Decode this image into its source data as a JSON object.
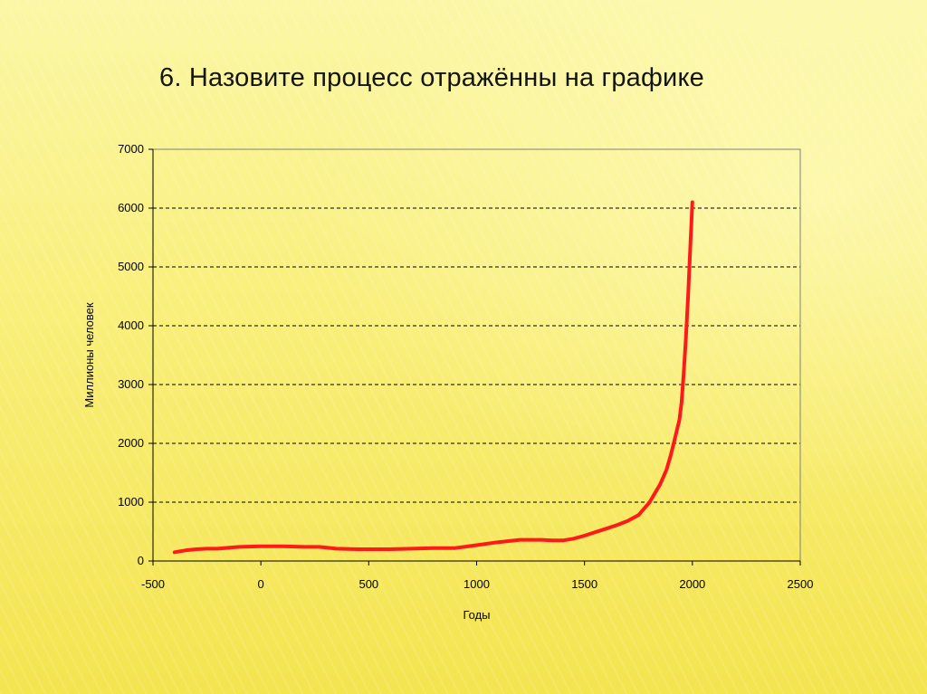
{
  "slide": {
    "title": "6. Назовите процесс отражённы на графике"
  },
  "colors": {
    "line": "#ff1a1a",
    "grid": "#000000",
    "axis": "#808080"
  },
  "chart_data": {
    "type": "line",
    "title": "",
    "xlabel": "Годы",
    "ylabel": "Миллионы человек",
    "xlim": [
      -500,
      2500
    ],
    "ylim": [
      0,
      7000
    ],
    "x_ticks": [
      -500,
      0,
      500,
      1000,
      1500,
      2000,
      2500
    ],
    "y_ticks": [
      0,
      1000,
      2000,
      3000,
      4000,
      5000,
      6000,
      7000
    ],
    "grid": "horizontal dashed",
    "legend": "none",
    "series": [
      {
        "x": [
          -400,
          -350,
          -300,
          -250,
          -200,
          -100,
          0,
          100,
          200,
          270,
          350,
          450,
          500,
          600,
          700,
          800,
          900,
          1000,
          1100,
          1200,
          1250,
          1300,
          1350,
          1400,
          1450,
          1500,
          1550,
          1600,
          1650,
          1700,
          1750,
          1800,
          1850,
          1880,
          1900,
          1920,
          1940,
          1950,
          1960,
          1970,
          1980,
          1990,
          2000
        ],
        "y": [
          150,
          180,
          200,
          210,
          210,
          240,
          250,
          250,
          240,
          240,
          210,
          200,
          200,
          200,
          210,
          220,
          220,
          270,
          320,
          360,
          360,
          360,
          350,
          350,
          380,
          430,
          490,
          550,
          610,
          680,
          780,
          990,
          1300,
          1550,
          1800,
          2100,
          2400,
          2700,
          3200,
          3800,
          4500,
          5300,
          6100
        ]
      }
    ]
  }
}
